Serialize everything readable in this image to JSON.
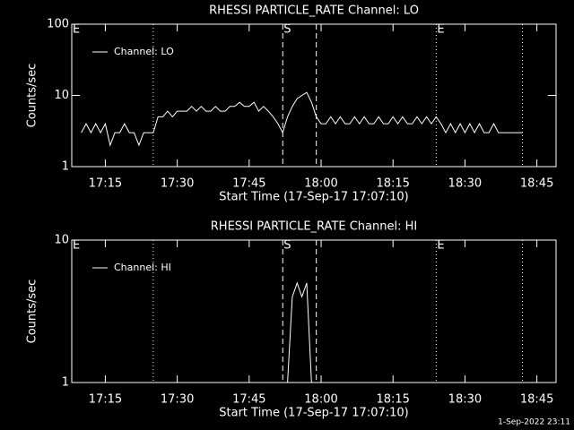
{
  "chart_data": [
    {
      "type": "line",
      "title": "RHESSI PARTICLE_RATE Channel: LO",
      "xlabel": "Start Time (17-Sep-17 17:07:10)",
      "ylabel": "Counts/sec",
      "log_y": true,
      "ylim": [
        1,
        100
      ],
      "yticks": [
        1,
        10,
        100
      ],
      "xlim": [
        "17:08",
        "18:49"
      ],
      "xticks": [
        "17:15",
        "17:30",
        "17:45",
        "18:00",
        "18:15",
        "18:30",
        "18:45"
      ],
      "legend": "top-left",
      "flags": [
        {
          "x": "17:08",
          "label": "E"
        },
        {
          "x": "17:52",
          "label": "S"
        },
        {
          "x": "18:24",
          "label": "E"
        }
      ],
      "lines": [
        {
          "x": "17:25",
          "style": "dotted"
        },
        {
          "x": "17:52",
          "style": "dashed"
        },
        {
          "x": "17:59",
          "style": "dashed"
        },
        {
          "x": "18:24",
          "style": "dotted"
        },
        {
          "x": "18:42",
          "style": "dotted"
        }
      ],
      "series": [
        {
          "name": "Channel: LO",
          "color": "#ffffff",
          "x": [
            "17:10",
            "17:11",
            "17:12",
            "17:13",
            "17:14",
            "17:15",
            "17:16",
            "17:17",
            "17:18",
            "17:19",
            "17:20",
            "17:21",
            "17:22",
            "17:23",
            "17:24",
            "17:25",
            "17:26",
            "17:27",
            "17:28",
            "17:29",
            "17:30",
            "17:31",
            "17:32",
            "17:33",
            "17:34",
            "17:35",
            "17:36",
            "17:37",
            "17:38",
            "17:39",
            "17:40",
            "17:41",
            "17:42",
            "17:43",
            "17:44",
            "17:45",
            "17:46",
            "17:47",
            "17:48",
            "17:49",
            "17:50",
            "17:51",
            "17:52",
            "17:53",
            "17:54",
            "17:55",
            "17:56",
            "17:57",
            "17:58",
            "17:59",
            "18:00",
            "18:01",
            "18:02",
            "18:03",
            "18:04",
            "18:05",
            "18:06",
            "18:07",
            "18:08",
            "18:09",
            "18:10",
            "18:11",
            "18:12",
            "18:13",
            "18:14",
            "18:15",
            "18:16",
            "18:17",
            "18:18",
            "18:19",
            "18:20",
            "18:21",
            "18:22",
            "18:23",
            "18:24",
            "18:25",
            "18:26",
            "18:27",
            "18:28",
            "18:29",
            "18:30",
            "18:31",
            "18:32",
            "18:33",
            "18:34",
            "18:35",
            "18:36",
            "18:37",
            "18:38",
            "18:39",
            "18:40",
            "18:41",
            "18:42"
          ],
          "values": [
            3,
            4,
            3,
            4,
            3,
            4,
            2,
            3,
            3,
            4,
            3,
            3,
            2,
            3,
            3,
            3,
            5,
            5,
            6,
            5,
            6,
            6,
            6,
            7,
            6,
            7,
            6,
            6,
            7,
            6,
            6,
            7,
            7,
            8,
            7,
            7,
            8,
            6,
            7,
            6,
            5,
            4,
            3,
            5,
            7,
            9,
            10,
            11,
            8,
            5,
            4,
            4,
            5,
            4,
            5,
            4,
            4,
            5,
            4,
            5,
            4,
            4,
            5,
            4,
            4,
            5,
            4,
            5,
            4,
            4,
            5,
            4,
            5,
            4,
            5,
            4,
            3,
            4,
            3,
            4,
            3,
            4,
            3,
            4,
            3,
            3,
            4,
            3,
            3,
            3,
            3,
            3,
            3
          ]
        }
      ]
    },
    {
      "type": "line",
      "title": "RHESSI PARTICLE_RATE Channel: HI",
      "xlabel": "Start Time (17-Sep-17 17:07:10)",
      "ylabel": "Counts/sec",
      "log_y": true,
      "ylim": [
        1,
        10
      ],
      "yticks": [
        1,
        10
      ],
      "xlim": [
        "17:08",
        "18:49"
      ],
      "xticks": [
        "17:15",
        "17:30",
        "17:45",
        "18:00",
        "18:15",
        "18:30",
        "18:45"
      ],
      "legend": "top-left",
      "flags": [
        {
          "x": "17:08",
          "label": "E"
        },
        {
          "x": "17:52",
          "label": "S"
        },
        {
          "x": "18:24",
          "label": "E"
        }
      ],
      "lines": [
        {
          "x": "17:25",
          "style": "dotted"
        },
        {
          "x": "17:52",
          "style": "dashed"
        },
        {
          "x": "17:59",
          "style": "dashed"
        },
        {
          "x": "18:24",
          "style": "dotted"
        },
        {
          "x": "18:42",
          "style": "dotted"
        }
      ],
      "series": [
        {
          "name": "Channel: HI",
          "color": "#ffffff",
          "x": [
            "17:53",
            "17:54",
            "17:55",
            "17:56",
            "17:57",
            "17:58"
          ],
          "values": [
            1,
            4,
            5,
            4,
            5,
            1
          ]
        }
      ]
    }
  ],
  "footer": "1-Sep-2022 23:11"
}
